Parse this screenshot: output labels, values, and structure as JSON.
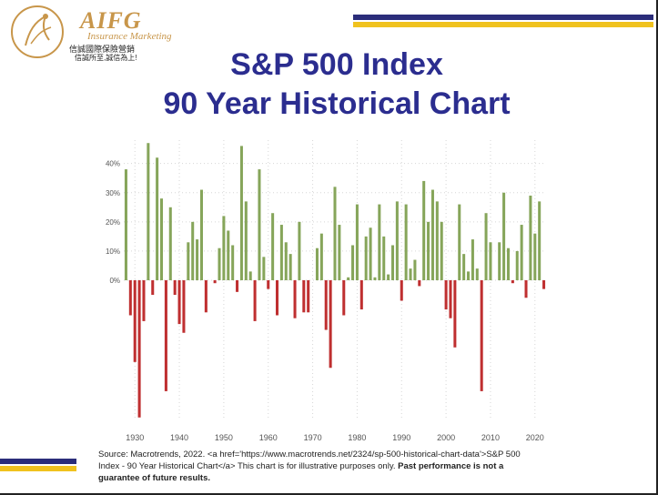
{
  "header": {
    "brand": "AIFG",
    "brand_sub": "Insurance Marketing",
    "brand_cn1": "信誠國際保險營銷",
    "brand_cn2": "信誠所至,誠信為上!",
    "title_line1": "S&P 500 Index",
    "title_line2": "90 Year Historical Chart"
  },
  "colors": {
    "title": "#2b2d8f",
    "positive": "#86a55a",
    "negative": "#bf2f30",
    "navy": "#2b2d7a",
    "gold": "#f0c21e",
    "brand": "#c8964a"
  },
  "source": {
    "prefix": "Source: Macrotrends, 2022. <a href='https://www.macrotrends.net/2324/sp-500-historical-chart-data'>S&P 500 Index - 90 Year Historical Chart</a> This chart is for illustrative purposes only. ",
    "bold": "Past performance is not a guarantee of future results."
  },
  "chart_data": {
    "type": "bar",
    "x": [
      1928,
      1929,
      1930,
      1931,
      1932,
      1933,
      1934,
      1935,
      1936,
      1937,
      1938,
      1939,
      1940,
      1941,
      1942,
      1943,
      1944,
      1945,
      1946,
      1947,
      1948,
      1949,
      1950,
      1951,
      1952,
      1953,
      1954,
      1955,
      1956,
      1957,
      1958,
      1959,
      1960,
      1961,
      1962,
      1963,
      1964,
      1965,
      1966,
      1967,
      1968,
      1969,
      1970,
      1971,
      1972,
      1973,
      1974,
      1975,
      1976,
      1977,
      1978,
      1979,
      1980,
      1981,
      1982,
      1983,
      1984,
      1985,
      1986,
      1987,
      1988,
      1989,
      1990,
      1991,
      1992,
      1993,
      1994,
      1995,
      1996,
      1997,
      1998,
      1999,
      2000,
      2001,
      2002,
      2003,
      2004,
      2005,
      2006,
      2007,
      2008,
      2009,
      2010,
      2011,
      2012,
      2013,
      2014,
      2015,
      2016,
      2017,
      2018,
      2019,
      2020,
      2021,
      2022
    ],
    "values": [
      38,
      -12,
      -28,
      -47,
      -14,
      47,
      -5,
      42,
      28,
      -38,
      25,
      -5,
      -15,
      -18,
      13,
      20,
      14,
      31,
      -11,
      0,
      -1,
      11,
      22,
      17,
      12,
      -4,
      46,
      27,
      3,
      -14,
      38,
      8,
      -3,
      23,
      -12,
      19,
      13,
      9,
      -13,
      20,
      -11,
      -11,
      0,
      11,
      16,
      -17,
      -30,
      32,
      19,
      -12,
      1,
      12,
      26,
      -10,
      15,
      18,
      1,
      26,
      15,
      2,
      12,
      27,
      -7,
      26,
      4,
      7,
      -2,
      34,
      20,
      31,
      27,
      20,
      -10,
      -13,
      -23,
      26,
      9,
      3,
      14,
      4,
      -38,
      23,
      13,
      0,
      13,
      30,
      11,
      -1,
      10,
      19,
      -6,
      29,
      16,
      27,
      -3
    ],
    "yticks": [
      "40%",
      "30%",
      "20%",
      "10%",
      "0%"
    ],
    "ytick_values": [
      40,
      30,
      20,
      10,
      0
    ],
    "xticks": [
      "1930",
      "1940",
      "1950",
      "1960",
      "1970",
      "1980",
      "1990",
      "2000",
      "2010",
      "2020"
    ],
    "xtick_values": [
      1930,
      1940,
      1950,
      1960,
      1970,
      1980,
      1990,
      2000,
      2010,
      2020
    ],
    "xlim": [
      1927.5,
      2022.5
    ],
    "ylim": [
      -48,
      48
    ],
    "grid": true,
    "title": "",
    "xlabel": "",
    "ylabel": ""
  }
}
